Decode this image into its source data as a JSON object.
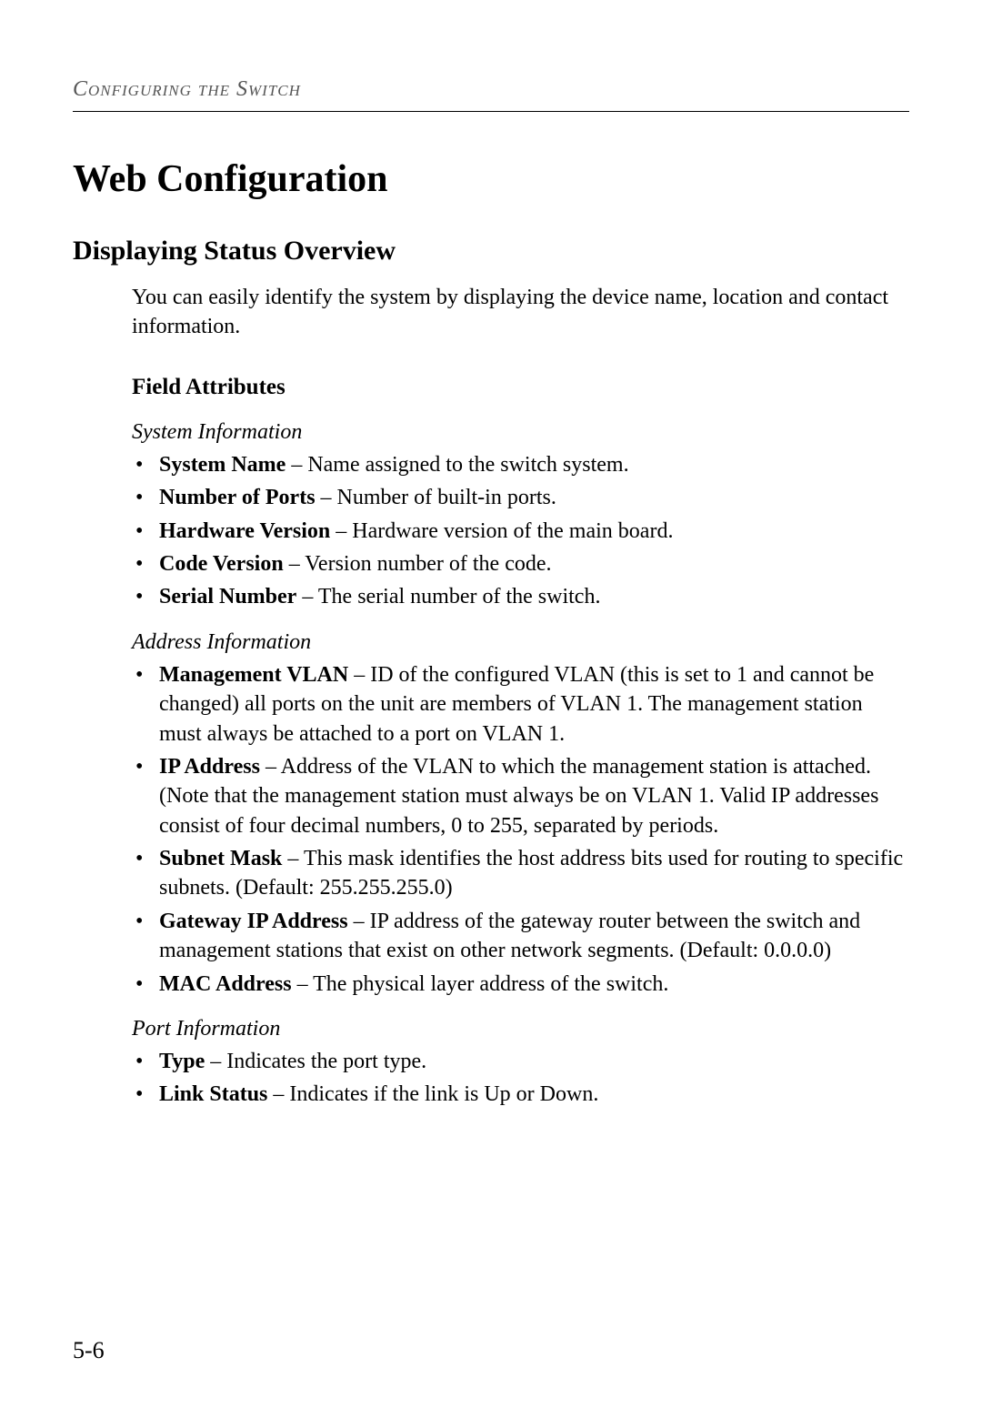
{
  "header": {
    "running_title": "Configuring the Switch"
  },
  "title": "Web Configuration",
  "section": {
    "heading": "Displaying Status Overview",
    "intro": "You can easily identify the system by displaying the device name, location and contact information.",
    "subsection_heading": "Field Attributes",
    "groups": [
      {
        "title": "System Information",
        "items": [
          {
            "term": "System Name",
            "desc": " – Name assigned to the switch system."
          },
          {
            "term": "Number of Ports",
            "desc": " – Number of built-in ports."
          },
          {
            "term": "Hardware Version",
            "desc": " – Hardware version of the main board."
          },
          {
            "term": "Code Version",
            "desc": " – Version number of the code."
          },
          {
            "term": "Serial Number",
            "desc": " – The serial number of the switch."
          }
        ]
      },
      {
        "title": "Address Information",
        "items": [
          {
            "term": "Management VLAN",
            "desc": " – ID of the configured VLAN (this is set to 1 and cannot be changed) all ports on the unit are members of VLAN 1. The management station must always be attached to a port on VLAN 1."
          },
          {
            "term": "IP Address",
            "desc": " – Address of the VLAN to which the management station is attached. (Note that the management station must always be on VLAN 1. Valid IP addresses consist of four decimal numbers, 0 to 255, separated by periods."
          },
          {
            "term": "Subnet Mask",
            "desc": " – This mask identifies the host address bits used for routing to specific subnets. (Default: 255.255.255.0)"
          },
          {
            "term": "Gateway IP Address",
            "desc": " – IP address of the gateway router between the switch and management stations that exist on other network segments. (Default: 0.0.0.0)"
          },
          {
            "term": "MAC Address",
            "desc": " – The physical layer address of the switch."
          }
        ]
      },
      {
        "title": "Port Information",
        "items": [
          {
            "term": "Type",
            "desc": " – Indicates the port type."
          },
          {
            "term": "Link Status",
            "desc": " – Indicates if the link is Up or Down."
          }
        ]
      }
    ]
  },
  "page_number": "5-6"
}
